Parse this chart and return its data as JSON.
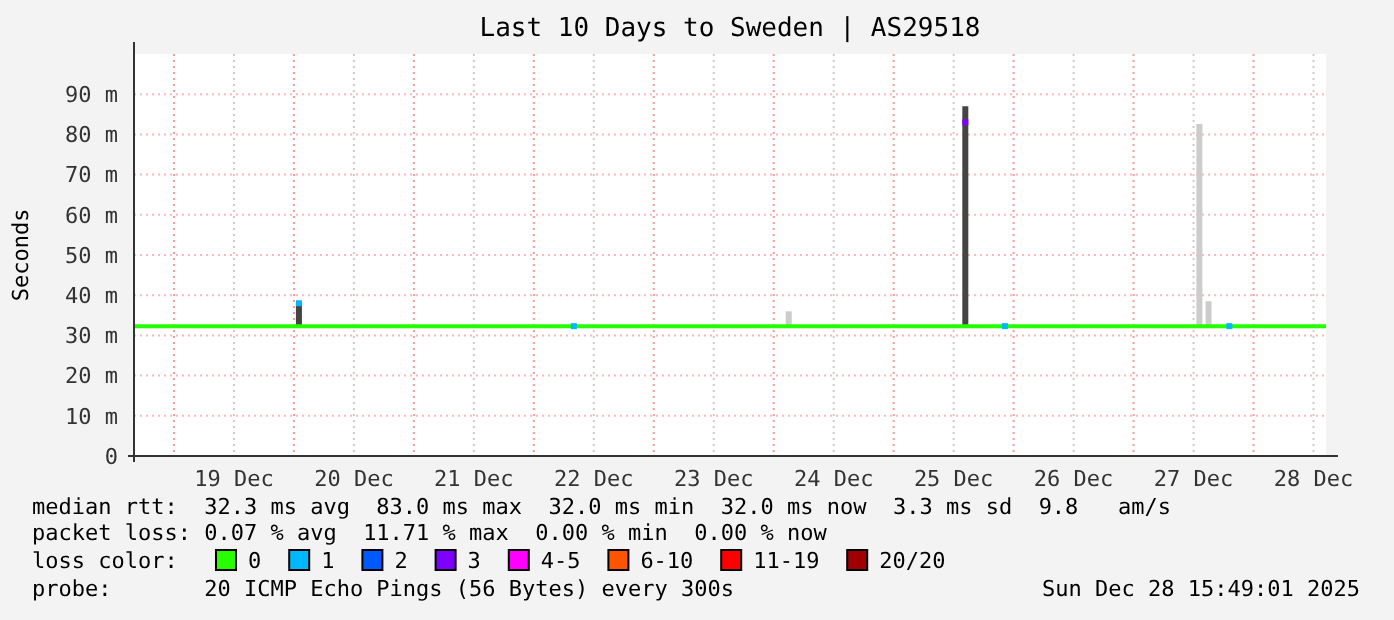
{
  "chart_data": {
    "type": "line",
    "title": "Last 10 Days to Sweden | AS29518",
    "ylabel": "Seconds",
    "xlim": [
      "2025-12-18T16:00",
      "2025-12-28T14:30"
    ],
    "xticks": [
      {
        "value": "2025-12-19T00:00",
        "label": null
      },
      {
        "value": "2025-12-19T12:00",
        "label": "19 Dec"
      },
      {
        "value": "2025-12-20T00:00",
        "label": null
      },
      {
        "value": "2025-12-20T12:00",
        "label": "20 Dec"
      },
      {
        "value": "2025-12-21T00:00",
        "label": null
      },
      {
        "value": "2025-12-21T12:00",
        "label": "21 Dec"
      },
      {
        "value": "2025-12-22T00:00",
        "label": null
      },
      {
        "value": "2025-12-22T12:00",
        "label": "22 Dec"
      },
      {
        "value": "2025-12-23T00:00",
        "label": null
      },
      {
        "value": "2025-12-23T12:00",
        "label": "23 Dec"
      },
      {
        "value": "2025-12-24T00:00",
        "label": null
      },
      {
        "value": "2025-12-24T12:00",
        "label": "24 Dec"
      },
      {
        "value": "2025-12-25T00:00",
        "label": null
      },
      {
        "value": "2025-12-25T12:00",
        "label": "25 Dec"
      },
      {
        "value": "2025-12-26T00:00",
        "label": null
      },
      {
        "value": "2025-12-26T12:00",
        "label": "26 Dec"
      },
      {
        "value": "2025-12-27T00:00",
        "label": null
      },
      {
        "value": "2025-12-27T12:00",
        "label": "27 Dec"
      },
      {
        "value": "2025-12-28T00:00",
        "label": null
      },
      {
        "value": "2025-12-28T12:00",
        "label": "28 Dec"
      }
    ],
    "ylim": [
      0,
      100
    ],
    "yticks": [
      0,
      {
        "value": 10,
        "label": "10 m"
      },
      {
        "value": 20,
        "label": "20 m"
      },
      {
        "value": 30,
        "label": "30 m"
      },
      {
        "value": 40,
        "label": "40 m"
      },
      {
        "value": 50,
        "label": "50 m"
      },
      {
        "value": 60,
        "label": "60 m"
      },
      {
        "value": 70,
        "label": "70 m"
      },
      {
        "value": 80,
        "label": "80 m"
      },
      {
        "value": 90,
        "label": "90 m"
      }
    ],
    "grid": true,
    "legend": "bottom",
    "legend_title": "loss color:",
    "series": [
      {
        "type": "bar",
        "x": [
          "2025-12-20T01:00",
          "2025-12-24T03:00",
          "2025-12-25T14:20",
          "2025-12-27T13:10",
          "2025-12-27T15:00"
        ],
        "base": [
          32.3,
          32.3,
          32.3,
          32.3,
          32.3
        ],
        "values": [
          5.7,
          3.7,
          54.7,
          50.3,
          6.2
        ],
        "colors": [
          "#444444",
          "#cccccc",
          "#444444",
          "#cccccc",
          "#cccccc"
        ]
      },
      {
        "name": "0",
        "color": "#26ff00",
        "x": [
          "2025-12-18T16:00",
          "2025-12-19T12:00",
          "2025-12-20T12:00",
          "2025-12-21T12:00",
          "2025-12-22T12:00",
          "2025-12-23T12:00",
          "2025-12-24T12:00",
          "2025-12-25T12:00",
          "2025-12-26T12:00",
          "2025-12-27T12:00",
          "2025-12-28T14:30"
        ],
        "values": [
          32.3,
          32.3,
          32.3,
          32.3,
          32.3,
          32.3,
          32.3,
          32.3,
          32.3,
          32.3,
          32.3
        ]
      },
      {
        "name": "1",
        "color": "#00b8ff",
        "type": "scatter",
        "x": [
          "2025-12-20T01:00",
          "2025-12-22T08:00",
          "2025-12-25T22:15",
          "2025-12-27T19:10"
        ],
        "values": [
          38,
          32.3,
          32.3,
          32.3
        ]
      },
      {
        "name": "2",
        "color": "#0059ff",
        "type": "scatter"
      },
      {
        "name": "3",
        "color": "#7e00ff",
        "type": "scatter",
        "x": [
          "2025-12-25T14:20"
        ],
        "values": [
          83
        ]
      },
      {
        "name": "4-5",
        "color": "#ff00ff",
        "type": "scatter"
      },
      {
        "name": "6-10",
        "color": "#ff5500",
        "type": "scatter"
      },
      {
        "name": "11-19",
        "color": "#ff0000",
        "type": "scatter"
      },
      {
        "name": "20/20",
        "color": "#a10000",
        "type": "scatter"
      }
    ],
    "annotations": [
      "median rtt:  32.3 ms avg  83.0 ms max  32.0 ms min  32.0 ms now  3.3 ms sd  9.8   am/s",
      "packet loss: 0.07 % avg  11.71 % max  0.00 % min  0.00 % now",
      "probe:       20 ICMP Echo Pings (56 Bytes) every 300s",
      "Sun Dec 28 15:49:01 2025"
    ]
  }
}
